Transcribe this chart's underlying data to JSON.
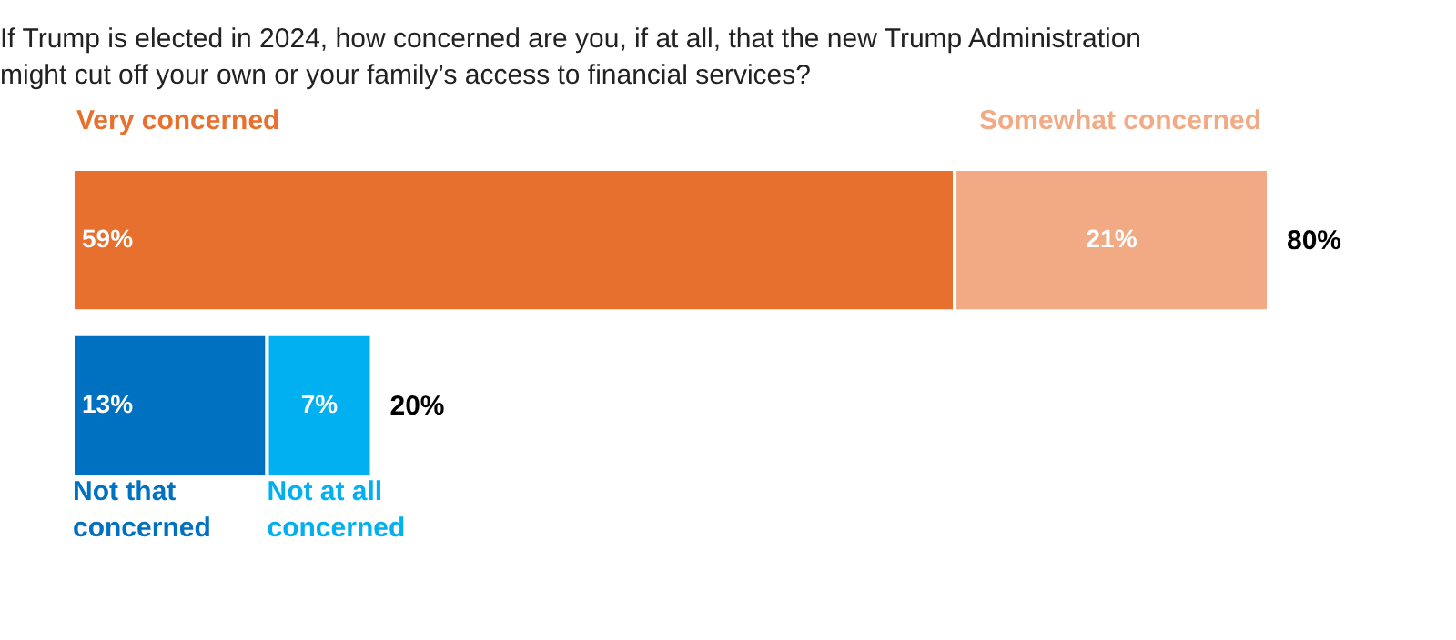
{
  "chart_data": {
    "type": "bar",
    "orientation": "horizontal",
    "stacked": true,
    "title": "If Trump is elected in 2024, how concerned are you, if at all, that the new Trump Administration might cut off your own or your family’s access to financial services?",
    "categories": [
      null,
      null
    ],
    "series": [
      {
        "name": "Very concerned",
        "color": "#e8702f",
        "values": [
          59,
          null
        ],
        "value_labels": [
          "59%",
          null
        ]
      },
      {
        "name": "Somewhat concerned",
        "color": "#f2aa84",
        "values": [
          21,
          null
        ],
        "value_labels": [
          "21%",
          null
        ]
      },
      {
        "name": "Not that concerned",
        "color": "#0070c0",
        "values": [
          null,
          13
        ],
        "value_labels": [
          null,
          "13%"
        ]
      },
      {
        "name": "Not at all concerned",
        "color": "#00b0f0",
        "values": [
          null,
          7
        ],
        "value_labels": [
          null,
          "7%"
        ]
      }
    ],
    "totals": [
      "80%",
      "20%"
    ],
    "legend": false
  }
}
